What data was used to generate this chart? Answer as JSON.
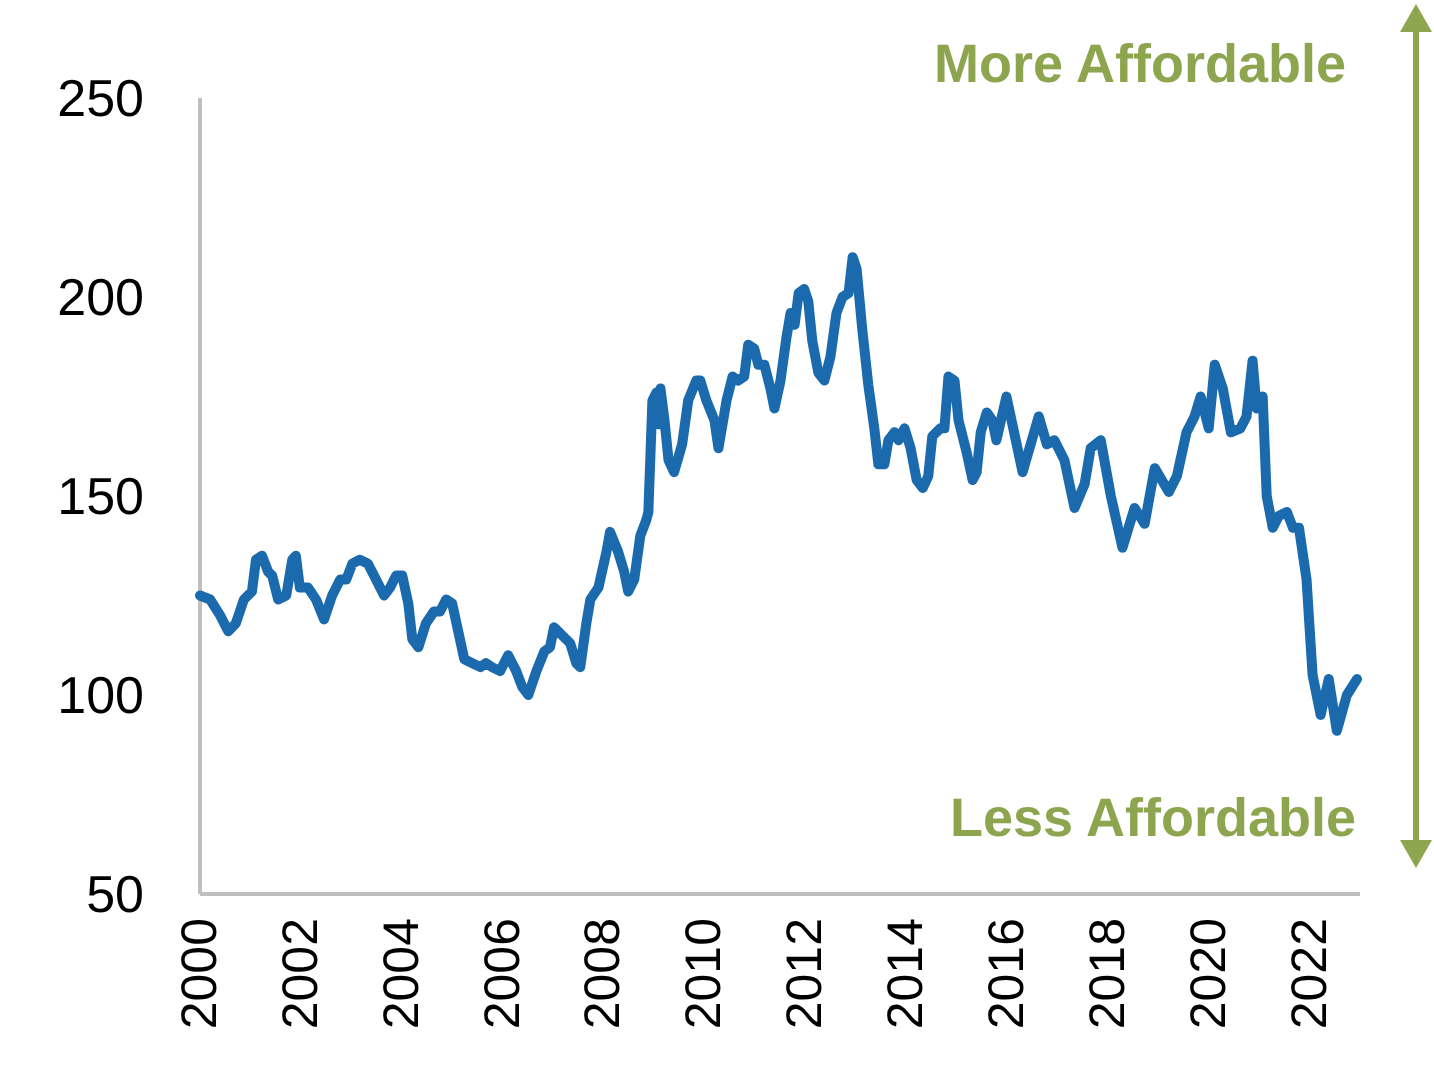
{
  "chart_data": {
    "type": "line",
    "x": [
      2000.0,
      2000.2,
      2000.4,
      2000.56,
      2000.71,
      2000.87,
      2001.03,
      2001.11,
      2001.23,
      2001.35,
      2001.43,
      2001.55,
      2001.71,
      2001.83,
      2001.9,
      2001.98,
      2002.14,
      2002.3,
      2002.46,
      2002.62,
      2002.78,
      2002.9,
      2003.02,
      2003.17,
      2003.33,
      2003.49,
      2003.65,
      2003.77,
      2003.89,
      2004.01,
      2004.13,
      2004.21,
      2004.33,
      2004.48,
      2004.64,
      2004.76,
      2004.88,
      2005.0,
      2005.12,
      2005.24,
      2005.4,
      2005.56,
      2005.67,
      2005.79,
      2005.95,
      2006.11,
      2006.27,
      2006.39,
      2006.51,
      2006.67,
      2006.83,
      2006.94,
      2007.02,
      2007.18,
      2007.34,
      2007.46,
      2007.54,
      2007.66,
      2007.74,
      2007.9,
      2008.06,
      2008.13,
      2008.29,
      2008.41,
      2008.49,
      2008.61,
      2008.73,
      2008.85,
      2008.89,
      2008.97,
      2009.05,
      2009.09,
      2009.13,
      2009.21,
      2009.29,
      2009.4,
      2009.56,
      2009.68,
      2009.84,
      2009.92,
      2010.04,
      2010.2,
      2010.28,
      2010.44,
      2010.56,
      2010.67,
      2010.79,
      2010.87,
      2010.99,
      2011.07,
      2011.19,
      2011.31,
      2011.39,
      2011.51,
      2011.63,
      2011.71,
      2011.79,
      2011.87,
      2011.98,
      2012.06,
      2012.14,
      2012.26,
      2012.38,
      2012.5,
      2012.62,
      2012.74,
      2012.86,
      2012.94,
      2013.02,
      2013.13,
      2013.25,
      2013.37,
      2013.45,
      2013.57,
      2013.65,
      2013.77,
      2013.85,
      2013.97,
      2014.09,
      2014.21,
      2014.33,
      2014.44,
      2014.52,
      2014.68,
      2014.76,
      2014.84,
      2014.96,
      2015.04,
      2015.2,
      2015.32,
      2015.4,
      2015.48,
      2015.6,
      2015.71,
      2015.79,
      2015.99,
      2016.31,
      2016.63,
      2016.79,
      2016.94,
      2017.14,
      2017.34,
      2017.54,
      2017.66,
      2017.86,
      2018.06,
      2018.29,
      2018.53,
      2018.73,
      2018.93,
      2019.21,
      2019.37,
      2019.56,
      2019.72,
      2019.84,
      2020.0,
      2020.12,
      2020.28,
      2020.44,
      2020.63,
      2020.75,
      2020.87,
      2020.95,
      2021.07,
      2021.15,
      2021.27,
      2021.39,
      2021.55,
      2021.67,
      2021.79,
      2021.94,
      2022.06,
      2022.22,
      2022.38,
      2022.54,
      2022.74,
      2022.94
    ],
    "series": [
      {
        "color": "#1a6aad",
        "values": [
          125,
          124,
          120,
          116,
          118,
          124,
          126,
          134,
          135,
          131,
          130,
          124,
          125,
          134,
          135,
          127,
          127,
          124,
          119,
          125,
          129,
          129,
          133,
          134,
          133,
          129,
          125,
          127,
          130,
          130,
          123,
          114,
          112,
          118,
          121,
          121,
          124,
          123,
          116,
          109,
          108,
          107,
          108,
          107,
          106,
          110,
          106,
          102,
          100,
          106,
          111,
          112,
          117,
          115,
          113,
          108,
          107,
          118,
          124,
          127,
          136,
          141,
          136,
          131,
          126,
          129,
          140,
          144,
          146,
          174,
          176,
          168,
          177,
          169,
          159,
          156,
          163,
          174,
          179,
          179,
          174,
          169,
          162,
          174,
          180,
          179,
          180,
          188,
          187,
          183,
          183,
          177,
          172,
          179,
          190,
          196,
          193,
          201,
          202,
          199,
          189,
          181,
          179,
          185,
          196,
          200,
          201,
          210,
          207,
          192,
          178,
          167,
          158,
          158,
          164,
          166,
          164,
          167,
          162,
          154,
          152,
          155,
          165,
          167,
          167,
          180,
          179,
          169,
          161,
          154,
          156,
          166,
          171,
          169,
          164,
          175,
          156,
          170,
          163,
          164,
          159,
          147,
          153,
          162,
          164,
          150,
          137,
          147,
          143,
          157,
          151,
          155,
          166,
          170,
          175,
          167,
          183,
          177,
          166,
          167,
          170,
          184,
          172,
          175,
          150,
          142,
          145,
          146,
          142,
          142,
          129,
          105,
          95,
          104,
          91,
          100,
          104
        ]
      }
    ],
    "xlim": [
      2000,
      2023
    ],
    "xticks": [
      2000,
      2002,
      2004,
      2006,
      2008,
      2010,
      2012,
      2014,
      2016,
      2018,
      2020,
      2022
    ],
    "ylim": [
      50,
      250
    ],
    "yticks": [
      50,
      100,
      150,
      200,
      250
    ],
    "grid": false,
    "marker": "none",
    "line_style": "solid",
    "annotations": [
      "More Affordable",
      "Less Affordable"
    ]
  }
}
